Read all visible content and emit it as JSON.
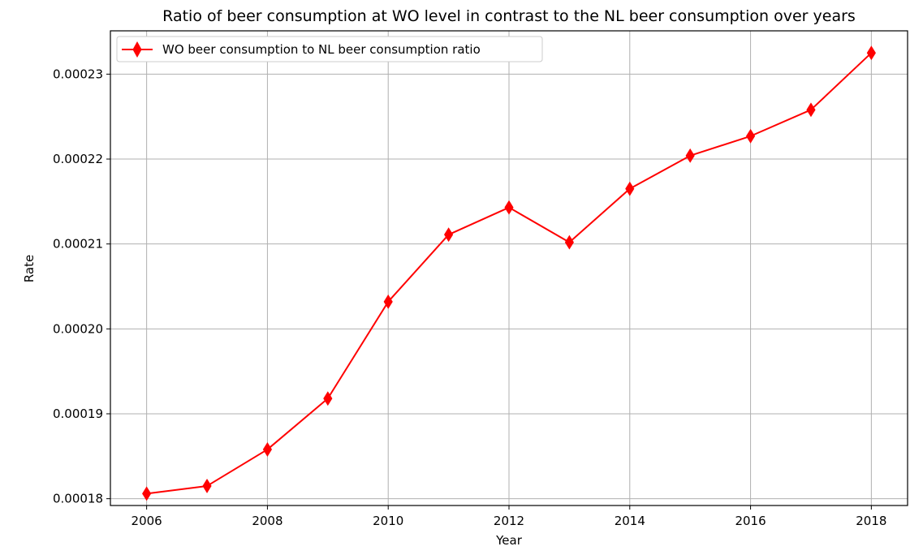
{
  "chart_data": {
    "type": "line",
    "title": "Ratio of beer consumption at WO level in contrast to the NL beer consumption over years",
    "xlabel": "Year",
    "ylabel": "Rate",
    "x": [
      2006,
      2007,
      2008,
      2009,
      2010,
      2011,
      2012,
      2013,
      2014,
      2015,
      2016,
      2017,
      2018
    ],
    "series": [
      {
        "name": "WO beer consumption to NL beer consumption ratio",
        "color": "#ff0000",
        "marker": "thin-diamond",
        "values": [
          0.0001806,
          0.0001815,
          0.0001858,
          0.0001918,
          0.0002032,
          0.0002111,
          0.0002143,
          0.0002102,
          0.0002165,
          0.0002204,
          0.0002227,
          0.0002258,
          0.0002325
        ]
      }
    ],
    "xlim": [
      2005.4,
      2018.6
    ],
    "ylim": [
      0.0001792,
      0.0002351
    ],
    "xticks": [
      2006,
      2008,
      2010,
      2012,
      2014,
      2016,
      2018
    ],
    "xtick_labels": [
      "2006",
      "2008",
      "2010",
      "2012",
      "2014",
      "2016",
      "2018"
    ],
    "yticks": [
      0.00018,
      0.00019,
      0.0002,
      0.00021,
      0.00022,
      0.00023
    ],
    "ytick_labels": [
      "0.00018",
      "0.00019",
      "0.00020",
      "0.00021",
      "0.00022",
      "0.00023"
    ],
    "grid": true,
    "legend_position": "top-left"
  }
}
